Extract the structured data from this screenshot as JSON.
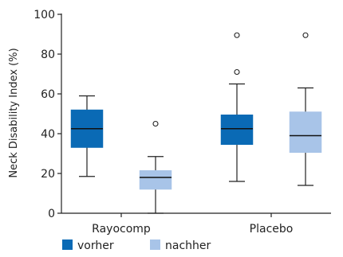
{
  "chart_data": {
    "type": "box",
    "title": "",
    "xlabel": "",
    "ylabel": "Neck Disability Index (%)",
    "ylim": [
      0,
      100
    ],
    "yticks": [
      0,
      20,
      40,
      60,
      80,
      100
    ],
    "categories": [
      "Rayocomp",
      "Placebo"
    ],
    "legend_position": "bottom-left",
    "grid": false,
    "series": [
      {
        "name": "vorher",
        "color": "#0a6ab5",
        "boxes": [
          {
            "category": "Rayocomp",
            "min": 18.5,
            "q1": 33,
            "median": 42.5,
            "q3": 52,
            "max": 59,
            "outliers": []
          },
          {
            "category": "Placebo",
            "min": 16,
            "q1": 34.5,
            "median": 42.5,
            "q3": 49.5,
            "max": 65,
            "outliers": [
              71,
              89.5
            ]
          }
        ]
      },
      {
        "name": "nachher",
        "color": "#a8c4e8",
        "boxes": [
          {
            "category": "Rayocomp",
            "min": 0,
            "q1": 12,
            "median": 18,
            "q3": 21.5,
            "max": 28.5,
            "outliers": [
              45
            ]
          },
          {
            "category": "Placebo",
            "min": 14,
            "q1": 30.5,
            "median": 39,
            "q3": 51,
            "max": 63,
            "outliers": [
              89.5
            ]
          }
        ]
      }
    ]
  }
}
